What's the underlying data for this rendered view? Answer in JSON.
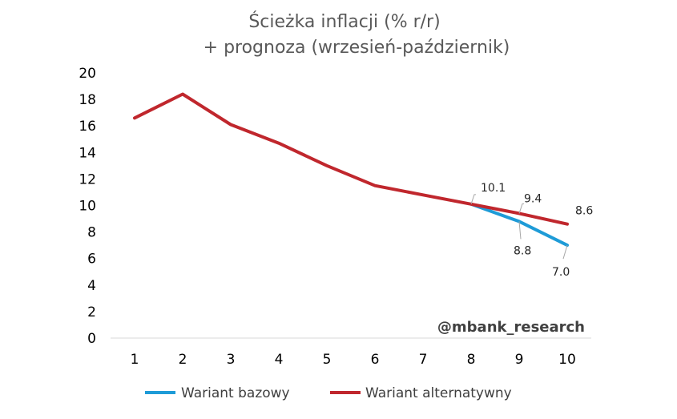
{
  "chart_data": {
    "type": "line",
    "title_lines": [
      "Ścieżka inflacji (% r/r)",
      "+ prognoza (wrzesień-październik)"
    ],
    "x": [
      1,
      2,
      3,
      4,
      5,
      6,
      7,
      8,
      9,
      10
    ],
    "x_tick_labels": [
      "1",
      "2",
      "3",
      "4",
      "5",
      "6",
      "7",
      "8",
      "9",
      "10"
    ],
    "y_tick_labels": [
      "0",
      "2",
      "4",
      "6",
      "8",
      "10",
      "12",
      "14",
      "16",
      "18",
      "20"
    ],
    "ylim": [
      0,
      20
    ],
    "grid": false,
    "legend_position": "bottom",
    "series": [
      {
        "name": "Wariant bazowy",
        "color": "#1e9bd7",
        "x": [
          8,
          9,
          10
        ],
        "values": [
          10.1,
          8.8,
          7.0
        ]
      },
      {
        "name": "Wariant alternatywny",
        "color": "#c0272d",
        "x": [
          1,
          2,
          3,
          4,
          5,
          6,
          7,
          8,
          9,
          10
        ],
        "values": [
          16.6,
          18.4,
          16.1,
          14.7,
          13.0,
          11.5,
          10.8,
          10.1,
          9.4,
          8.6
        ]
      }
    ],
    "data_labels": [
      "10.1",
      "9.4",
      "8.6",
      "8.8",
      "7.0"
    ],
    "watermark": "@mbank_research"
  }
}
